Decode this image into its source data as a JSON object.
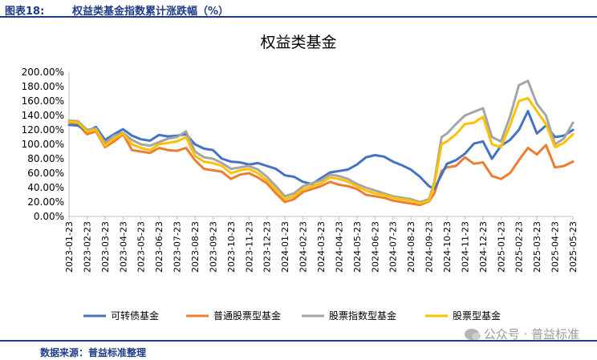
{
  "header": {
    "figure_label": "图表18:",
    "caption": "权益类基金指数累计涨跌幅（%）"
  },
  "footer": {
    "source": "数据来源：普益标准整理"
  },
  "watermark": {
    "text": "公众号 · 普益标准",
    "icon": "wechat-icon"
  },
  "chart_data": {
    "type": "line",
    "title": "权益类基金",
    "xlabel": "",
    "ylabel": "",
    "ylim": [
      0,
      200
    ],
    "y_ticks": [
      "0.00%",
      "20.00%",
      "40.00%",
      "60.00%",
      "80.00%",
      "100.00%",
      "120.00%",
      "140.00%",
      "160.00%",
      "180.00%",
      "200.00%"
    ],
    "grid": false,
    "legend_position": "bottom",
    "categories": [
      "2023-01-23",
      "2023-02-23",
      "2023-03-23",
      "2023-04-23",
      "2023-05-23",
      "2023-06-23",
      "2023-07-23",
      "2023-08-23",
      "2023-09-23",
      "2023-10-23",
      "2023-11-23",
      "2023-12-23",
      "2024-01-23",
      "2024-02-23",
      "2024-03-23",
      "2024-04-23",
      "2024-05-23",
      "2024-06-23",
      "2024-07-23",
      "2024-08-23",
      "2024-09-23",
      "2024-10-23",
      "2024-11-23",
      "2024-12-23",
      "2025-01-23",
      "2025-02-23",
      "2025-03-23",
      "2025-04-23",
      "2025-05-23"
    ],
    "x": [
      0,
      0.5,
      1,
      1.5,
      2,
      2.5,
      3,
      3.5,
      4,
      4.5,
      5,
      5.5,
      6,
      6.5,
      7,
      7.5,
      8,
      8.5,
      9,
      9.5,
      10,
      10.5,
      11,
      11.5,
      12,
      12.5,
      13,
      13.5,
      14,
      14.5,
      15,
      15.5,
      16,
      16.5,
      17,
      17.5,
      18,
      18.5,
      19,
      19.5,
      20,
      20.3,
      20.7,
      21,
      21.5,
      22,
      22.5,
      23,
      23.5,
      24,
      24.5,
      25,
      25.5,
      26,
      26.5,
      27,
      27.5,
      28
    ],
    "series": [
      {
        "name": "可转债基金",
        "color": "#4472c4",
        "values": [
          127,
          126,
          118,
          124,
          106,
          114,
          121,
          112,
          107,
          105,
          113,
          111,
          112,
          114,
          100,
          94,
          92,
          80,
          76,
          75,
          72,
          74,
          70,
          66,
          57,
          55,
          48,
          45,
          53,
          61,
          63,
          65,
          72,
          82,
          85,
          83,
          76,
          71,
          65,
          55,
          42,
          38,
          58,
          73,
          78,
          87,
          101,
          104,
          80,
          98,
          106,
          120,
          146,
          115,
          126,
          110,
          112,
          120
        ]
      },
      {
        "name": "普通股票型基金",
        "color": "#ed7d31",
        "values": [
          131,
          128,
          114,
          118,
          96,
          104,
          114,
          92,
          90,
          88,
          95,
          92,
          91,
          95,
          78,
          66,
          64,
          62,
          52,
          58,
          60,
          54,
          46,
          32,
          20,
          24,
          34,
          38,
          42,
          48,
          44,
          42,
          38,
          30,
          28,
          26,
          22,
          20,
          18,
          16,
          21,
          32,
          63,
          68,
          70,
          82,
          73,
          75,
          56,
          52,
          60,
          78,
          95,
          86,
          99,
          68,
          70,
          76
        ]
      },
      {
        "name": "股票指数型基金",
        "color": "#a5a5a5",
        "values": [
          133,
          132,
          120,
          122,
          102,
          112,
          116,
          106,
          100,
          98,
          103,
          108,
          110,
          118,
          90,
          82,
          80,
          74,
          66,
          68,
          70,
          65,
          55,
          42,
          28,
          32,
          42,
          46,
          50,
          58,
          56,
          52,
          45,
          40,
          36,
          32,
          28,
          26,
          24,
          20,
          24,
          48,
          110,
          115,
          128,
          140,
          145,
          150,
          110,
          104,
          138,
          182,
          188,
          156,
          140,
          100,
          108,
          130
        ]
      },
      {
        "name": "股票型基金",
        "color": "#ffc000",
        "values": [
          132,
          130,
          118,
          120,
          98,
          108,
          115,
          100,
          95,
          92,
          100,
          102,
          104,
          110,
          84,
          76,
          74,
          70,
          60,
          64,
          66,
          60,
          50,
          37,
          24,
          28,
          38,
          42,
          46,
          54,
          52,
          48,
          42,
          36,
          32,
          30,
          26,
          24,
          22,
          18,
          22,
          44,
          100,
          104,
          114,
          128,
          130,
          138,
          100,
          96,
          126,
          160,
          164,
          146,
          128,
          96,
          102,
          114
        ]
      }
    ]
  }
}
